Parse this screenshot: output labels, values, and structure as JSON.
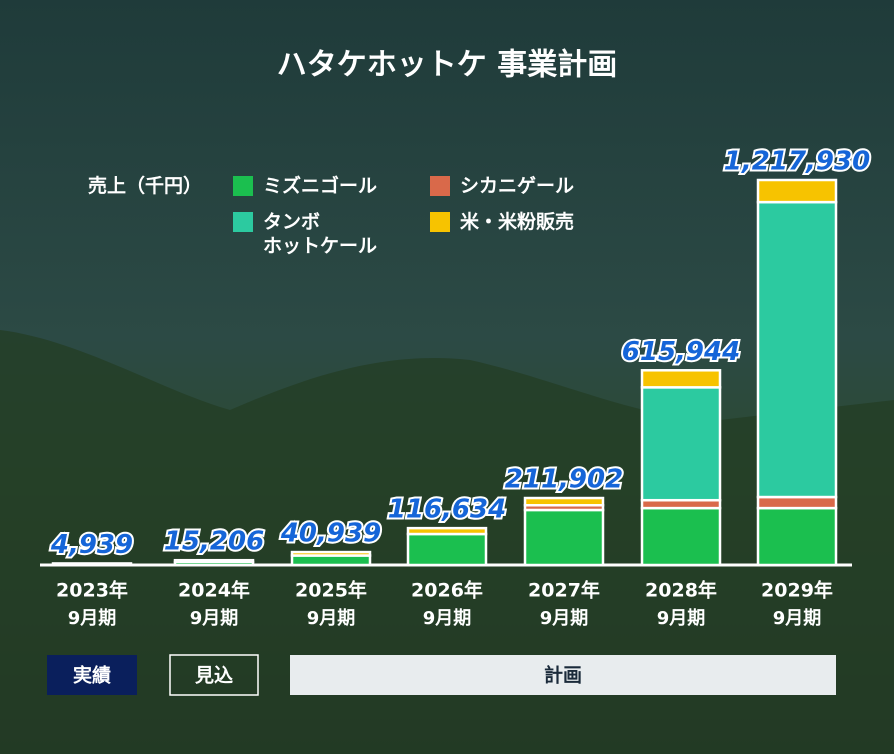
{
  "chart_data": {
    "type": "stacked-bar",
    "title": "ハタケホットケ 事業計画",
    "unit_label": "売上（千円）",
    "categories": [
      [
        "2023年",
        "9月期"
      ],
      [
        "2024年",
        "9月期"
      ],
      [
        "2025年",
        "9月期"
      ],
      [
        "2026年",
        "9月期"
      ],
      [
        "2027年",
        "9月期"
      ],
      [
        "2028年",
        "9月期"
      ],
      [
        "2029年",
        "9月期"
      ]
    ],
    "series": [
      {
        "name": "ミズニゴール",
        "color": "#1bbf4f",
        "values": [
          4939,
          10000,
          30000,
          98000,
          174000,
          180000,
          180000
        ]
      },
      {
        "name": "シカニゲール",
        "color": "#d9694a",
        "values": [
          0,
          0,
          0,
          0,
          15000,
          25000,
          35000
        ]
      },
      {
        "name": "タンボ\nホットケール",
        "color": "#2ccaa0",
        "values": [
          0,
          0,
          0,
          0,
          0,
          357000,
          933000
        ]
      },
      {
        "name": "米・米粉販売",
        "color": "#f7c300",
        "values": [
          0,
          5206,
          10939,
          18634,
          22902,
          53944,
          69930
        ]
      }
    ],
    "totals": [
      4939,
      15206,
      40939,
      116634,
      211902,
      615944,
      1217930
    ],
    "total_labels": [
      "4,939",
      "15,206",
      "40,939",
      "116,634",
      "211,902",
      "615,944",
      "1,217,930"
    ],
    "ylim": [
      0,
      1217930
    ],
    "phases": [
      "実績",
      "見込",
      "計画"
    ]
  }
}
